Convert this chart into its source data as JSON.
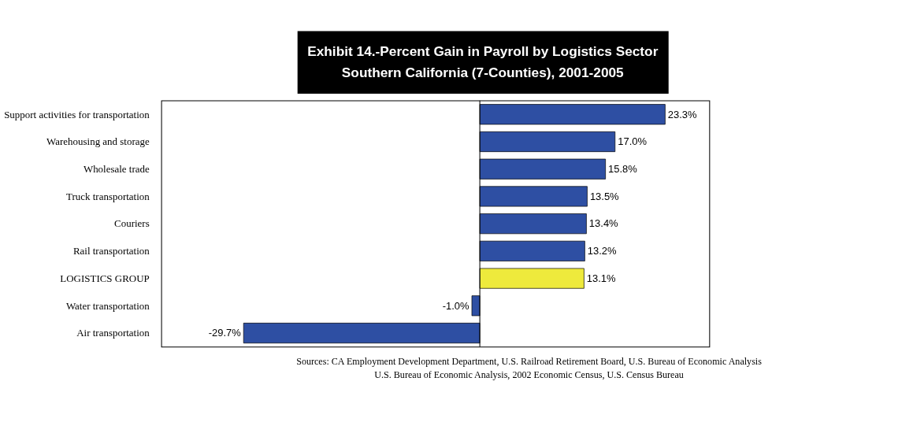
{
  "chart_data": {
    "type": "bar",
    "orientation": "horizontal",
    "title": "Exhibit 14.-Percent Gain in Payroll  by Logistics Sector",
    "subtitle": "Southern California (7-Counties), 2001-2005",
    "categories": [
      "Support activities for transportation",
      "Warehousing and storage",
      "Wholesale trade",
      "Truck transportation",
      "Couriers",
      "Rail transportation",
      "LOGISTICS GROUP",
      "Water transportation",
      "Air transportation"
    ],
    "values": [
      23.3,
      17.0,
      15.8,
      13.5,
      13.4,
      13.2,
      13.1,
      -1.0,
      -29.7
    ],
    "colors": [
      "#2e4fa3",
      "#2e4fa3",
      "#2e4fa3",
      "#2e4fa3",
      "#2e4fa3",
      "#2e4fa3",
      "#eeea3c",
      "#2e4fa3",
      "#2e4fa3"
    ],
    "value_labels": [
      "23.3%",
      "17.0%",
      "15.8%",
      "13.5%",
      "13.4%",
      "13.2%",
      "13.1%",
      "-1.0%",
      "-29.7%"
    ],
    "annotations": [
      "Sources:  CA Employment Development Department, U.S. Railroad Retirement Board, U.S. Bureau of Economic Analysis",
      "U.S. Bureau of Economic Analysis, 2002 Economic Census, U.S. Census Bureau"
    ],
    "tick_labels": "y",
    "grid": false
  }
}
